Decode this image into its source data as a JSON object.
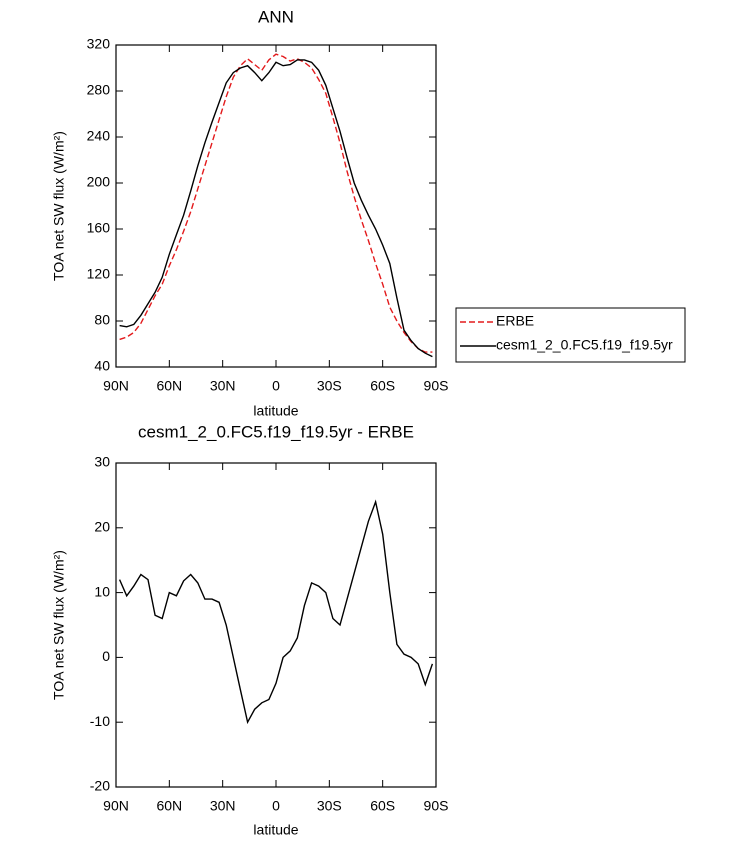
{
  "chart_data": [
    {
      "type": "line",
      "title": "ANN",
      "xlabel": "latitude",
      "ylabel": "TOA net SW flux (W/m²)",
      "x": [
        88,
        84,
        80,
        76,
        72,
        68,
        64,
        60,
        56,
        52,
        48,
        44,
        40,
        36,
        32,
        28,
        24,
        20,
        16,
        12,
        8,
        4,
        0,
        -4,
        -8,
        -12,
        -16,
        -20,
        -24,
        -28,
        -32,
        -36,
        -40,
        -44,
        -48,
        -52,
        -56,
        -60,
        -64,
        -68,
        -72,
        -76,
        -80,
        -84,
        -88
      ],
      "series": [
        {
          "name": "ERBE",
          "color": "#e31a1c",
          "dash": true,
          "values": [
            64,
            66,
            70,
            78,
            90,
            102,
            112,
            128,
            142,
            158,
            175,
            195,
            215,
            235,
            255,
            275,
            292,
            302,
            308,
            303,
            298,
            307,
            312,
            310,
            306,
            308,
            305,
            300,
            290,
            278,
            257,
            235,
            210,
            188,
            168,
            150,
            130,
            112,
            92,
            80,
            70,
            62,
            56,
            53,
            53
          ]
        },
        {
          "name": "cesm1_2_0.FC5.f19_f19.5yr",
          "color": "#000000",
          "dash": false,
          "values": [
            76,
            75,
            77,
            85,
            95,
            105,
            118,
            138,
            155,
            172,
            193,
            215,
            235,
            253,
            270,
            287,
            296,
            300,
            302,
            296,
            289,
            296,
            305,
            302,
            303,
            307,
            307,
            305,
            298,
            285,
            265,
            245,
            222,
            200,
            185,
            172,
            160,
            146,
            130,
            100,
            72,
            63,
            56,
            52,
            49
          ]
        }
      ],
      "xlim": [
        90,
        -90
      ],
      "xticks": [
        {
          "value": 90,
          "label": "90N"
        },
        {
          "value": 60,
          "label": "60N"
        },
        {
          "value": 30,
          "label": "30N"
        },
        0,
        {
          "value": -30,
          "label": "30S"
        },
        {
          "value": -60,
          "label": "60S"
        },
        {
          "value": -90,
          "label": "90S"
        }
      ],
      "ylim": [
        40,
        320
      ],
      "yticks": [
        40,
        80,
        120,
        160,
        200,
        240,
        280,
        320
      ],
      "legend": "right"
    },
    {
      "type": "line",
      "title": "cesm1_2_0.FC5.f19_f19.5yr - ERBE",
      "xlabel": "latitude",
      "ylabel": "TOA net SW flux (W/m²)",
      "x": [
        88,
        84,
        80,
        76,
        72,
        68,
        64,
        60,
        56,
        52,
        48,
        44,
        40,
        36,
        32,
        28,
        24,
        20,
        16,
        12,
        8,
        4,
        0,
        -4,
        -8,
        -12,
        -16,
        -20,
        -24,
        -28,
        -32,
        -36,
        -40,
        -44,
        -48,
        -52,
        -56,
        -60,
        -64,
        -68,
        -72,
        -76,
        -80,
        -84,
        -88
      ],
      "series": [
        {
          "color": "#000000",
          "dash": false,
          "values": [
            12,
            9.5,
            11,
            12.8,
            12,
            6.5,
            6,
            10,
            9.5,
            11.8,
            12.8,
            11.5,
            9,
            9,
            8.5,
            5,
            0,
            -5,
            -10,
            -8,
            -7,
            -6.5,
            -4,
            0,
            1,
            3,
            8,
            11.5,
            11,
            10,
            6,
            5,
            9,
            13,
            17,
            21,
            24,
            19,
            10,
            2,
            0.5,
            0,
            -1,
            -4.2,
            -1
          ]
        }
      ],
      "xlim": [
        90,
        -90
      ],
      "xticks": [
        {
          "value": 90,
          "label": "90N"
        },
        {
          "value": 60,
          "label": "60N"
        },
        {
          "value": 30,
          "label": "30N"
        },
        0,
        {
          "value": -30,
          "label": "30S"
        },
        {
          "value": -60,
          "label": "60S"
        },
        {
          "value": -90,
          "label": "90S"
        }
      ],
      "ylim": [
        -20,
        30
      ],
      "yticks": [
        -20,
        -10,
        0,
        10,
        20,
        30
      ]
    }
  ]
}
